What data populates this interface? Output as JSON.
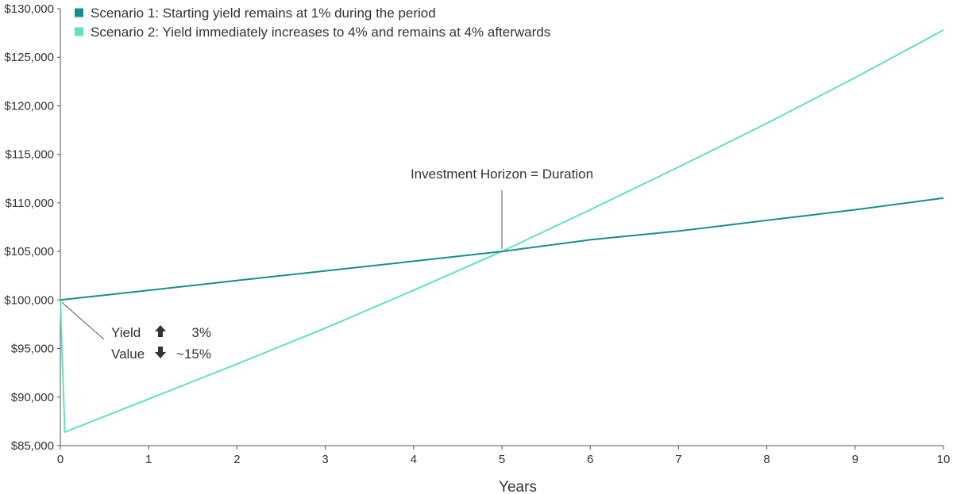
{
  "chart_data": {
    "type": "line",
    "title": "",
    "xlabel": "Years",
    "ylabel": "",
    "xlim": [
      0,
      10
    ],
    "ylim": [
      85000,
      130000
    ],
    "x_ticks": [
      "0",
      "1",
      "2",
      "3",
      "4",
      "5",
      "6",
      "7",
      "8",
      "9",
      "10"
    ],
    "y_ticks": [
      "$85,000",
      "$90,000",
      "$95,000",
      "$100,000",
      "$105,000",
      "$110,000",
      "$115,000",
      "$120,000",
      "$125,000",
      "$130,000"
    ],
    "grid": false,
    "legend_position": "top-left",
    "series": [
      {
        "name": "Scenario 1: Starting yield remains at 1% during the period",
        "color": "#14908a",
        "x": [
          0,
          1,
          2,
          3,
          4,
          5,
          6,
          7,
          8,
          9,
          10
        ],
        "y": [
          100000,
          101000,
          102000,
          103000,
          104000,
          105000,
          106200,
          107100,
          108200,
          109300,
          110500
        ]
      },
      {
        "name": "Scenario 2: Yield immediately increases to 4% and remains at 4% afterwards",
        "color": "#5fe0c6",
        "x": [
          0,
          0.05,
          1,
          2,
          3,
          4,
          5,
          6,
          7,
          8,
          9,
          10
        ],
        "y": [
          100000,
          86400,
          89800,
          93400,
          97100,
          101000,
          105000,
          109300,
          113700,
          118200,
          122900,
          127800
        ]
      }
    ],
    "annotations": [
      {
        "text": "Investment Horizon = Duration",
        "x": 5,
        "y": 105000
      },
      {
        "label": "Yield",
        "direction": "up",
        "value": "3%"
      },
      {
        "label": "Value",
        "direction": "down",
        "value": "~15%"
      }
    ]
  }
}
